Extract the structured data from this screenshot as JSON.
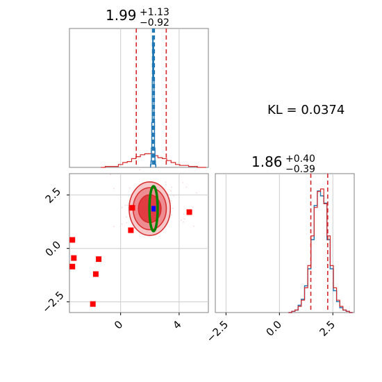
{
  "chart_data": [
    {
      "type": "histogram",
      "panel": "top-left",
      "title": {
        "value": "1.99",
        "upper": "+1.13",
        "lower": "−0.92"
      },
      "xlim": [
        -3.5,
        6.0
      ],
      "grid": true,
      "series": [
        {
          "color": "#d62728",
          "x": [
            -1.2,
            -0.9,
            -0.6,
            -0.3,
            0.0,
            0.3,
            0.6,
            0.9,
            1.2,
            1.5,
            1.8,
            2.1,
            2.4,
            2.7,
            3.0,
            3.3,
            3.6,
            3.9,
            4.2,
            4.5,
            4.8,
            5.1,
            5.4,
            5.7
          ],
          "density": [
            0.0,
            0.01,
            0.01,
            0.01,
            0.03,
            0.05,
            0.06,
            0.09,
            0.11,
            0.13,
            0.14,
            0.14,
            0.12,
            0.1,
            0.09,
            0.07,
            0.05,
            0.03,
            0.02,
            0.02,
            0.01,
            0.01,
            0.0,
            0.0
          ],
          "median": 1.99,
          "lower": 1.07,
          "upper": 3.12
        },
        {
          "color": "#1f77b4",
          "x": [
            2.06,
            2.09,
            2.12,
            2.15,
            2.18,
            2.21,
            2.24,
            2.27,
            2.3,
            2.33,
            2.36,
            2.39
          ],
          "density": [
            0.02,
            0.05,
            0.15,
            0.35,
            0.7,
            1.0,
            0.95,
            0.7,
            0.35,
            0.15,
            0.05,
            0.02
          ],
          "median": 2.25,
          "lower": 2.18,
          "upper": 2.31
        }
      ]
    },
    {
      "type": "scatter",
      "panel": "bottom-left",
      "xlim": [
        -3.5,
        6.0
      ],
      "ylim": [
        -3.0,
        3.5
      ],
      "xticks": [
        "0",
        "4"
      ],
      "yticks": [
        "−2.5",
        "0.0",
        "2.5"
      ],
      "grid": true,
      "contours": {
        "color": "#d62728",
        "center": [
          1.99,
          1.86
        ],
        "levels": [
          {
            "rx": 1.7,
            "ry": 0.65
          },
          {
            "rx": 2.5,
            "ry": 0.98
          },
          {
            "rx": 3.1,
            "ry": 1.25
          }
        ]
      },
      "green_contour": {
        "color": "#008000",
        "center": [
          2.25,
          1.86
        ],
        "rx": 0.28,
        "ry": 1.05
      },
      "blue_point": {
        "color": "#0000ff",
        "x": 2.25,
        "y": 1.86
      },
      "red_squares": {
        "color": "#ff0000",
        "points": [
          [
            -3.3,
            0.4
          ],
          [
            -3.2,
            -0.45
          ],
          [
            -3.3,
            -0.85
          ],
          [
            -1.5,
            -0.5
          ],
          [
            -1.7,
            -1.2
          ],
          [
            -1.9,
            -2.6
          ],
          [
            0.8,
            1.9
          ],
          [
            0.7,
            0.85
          ],
          [
            4.7,
            1.7
          ]
        ]
      }
    },
    {
      "type": "histogram",
      "panel": "bottom-right",
      "title": {
        "value": "1.86",
        "upper": "+0.40",
        "lower": "−0.39"
      },
      "xlim": [
        -3.0,
        3.5
      ],
      "xticks": [
        "−2.5",
        "0.0",
        "2.5"
      ],
      "grid": true,
      "series": [
        {
          "color": "#d62728",
          "x": [
            0.5,
            0.65,
            0.8,
            0.95,
            1.1,
            1.25,
            1.4,
            1.55,
            1.7,
            1.85,
            2.0,
            2.15,
            2.3,
            2.45,
            2.6,
            2.75,
            2.9,
            3.05,
            3.2,
            3.35
          ],
          "density": [
            0.0,
            0.01,
            0.02,
            0.05,
            0.1,
            0.2,
            0.38,
            0.62,
            0.85,
            0.98,
            1.0,
            0.88,
            0.62,
            0.38,
            0.2,
            0.1,
            0.05,
            0.02,
            0.01,
            0.0
          ],
          "median": 1.86,
          "lower": 1.47,
          "upper": 2.26
        },
        {
          "color": "#1f77b4",
          "x": [
            0.5,
            0.65,
            0.8,
            0.95,
            1.1,
            1.25,
            1.4,
            1.55,
            1.7,
            1.85,
            2.0,
            2.15,
            2.3,
            2.45,
            2.6,
            2.75,
            2.9,
            3.05,
            3.2,
            3.35
          ],
          "density": [
            0.0,
            0.01,
            0.02,
            0.06,
            0.11,
            0.22,
            0.36,
            0.6,
            0.88,
            1.0,
            0.96,
            0.9,
            0.6,
            0.36,
            0.18,
            0.09,
            0.04,
            0.02,
            0.01,
            0.0
          ]
        }
      ]
    }
  ],
  "kl": {
    "label": "KL = 0.0374"
  },
  "colors": {
    "red": "#d62728",
    "blue": "#1f77b4",
    "green": "#008000",
    "grid": "#cccccc"
  }
}
